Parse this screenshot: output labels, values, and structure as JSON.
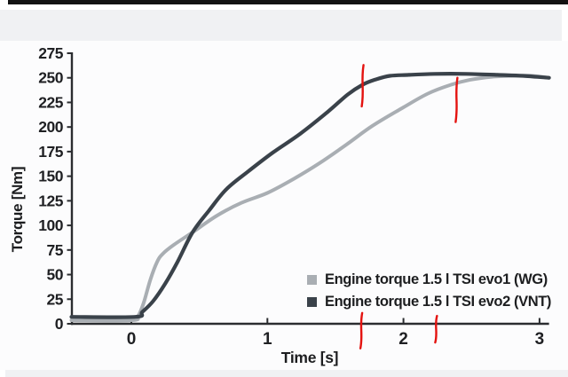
{
  "frame": {
    "top_bar_color": "#121212",
    "band_color": "#f0f1f3",
    "canvas_color": "#fcfcfd"
  },
  "chart_data": {
    "type": "line",
    "title": "",
    "xlabel": "Time [s]",
    "ylabel": "Torque [Nm]",
    "xlim": [
      -0.44,
      3.07
    ],
    "ylim": [
      0,
      275
    ],
    "x_ticks": [
      0,
      1,
      2,
      3
    ],
    "y_ticks": [
      0,
      25,
      50,
      75,
      100,
      125,
      150,
      175,
      200,
      225,
      250,
      275
    ],
    "grid": false,
    "legend_position": "inside lower right",
    "axis_color": "#2b2d30",
    "tick_label_color": "#1f2023",
    "annotation_color": "#e41310",
    "series": [
      {
        "name": "Engine torque 1.5 l TSI evo1 (WG)",
        "color": "#a9aeb3",
        "stroke_width": 4,
        "points": [
          [
            -0.44,
            3.6
          ],
          [
            0.0,
            3.6
          ],
          [
            0.05,
            8
          ],
          [
            0.09,
            21
          ],
          [
            0.14,
            45
          ],
          [
            0.19,
            63
          ],
          [
            0.23,
            71
          ],
          [
            0.31,
            80
          ],
          [
            0.45,
            93
          ],
          [
            0.63,
            110
          ],
          [
            0.81,
            123
          ],
          [
            1.0,
            133
          ],
          [
            1.19,
            147
          ],
          [
            1.38,
            163
          ],
          [
            1.58,
            182
          ],
          [
            1.77,
            201
          ],
          [
            2.0,
            220
          ],
          [
            2.18,
            234
          ],
          [
            2.35,
            243
          ],
          [
            2.49,
            248
          ],
          [
            2.65,
            251
          ],
          [
            2.82,
            252
          ],
          [
            2.95,
            252
          ],
          [
            3.07,
            250
          ]
        ]
      },
      {
        "name": "Engine torque 1.5 l TSI evo2 (VNT)",
        "color": "#3a424a",
        "stroke_width": 4.2,
        "points": [
          [
            -0.44,
            7
          ],
          [
            0.03,
            7
          ],
          [
            0.08,
            12
          ],
          [
            0.16,
            23
          ],
          [
            0.25,
            41
          ],
          [
            0.34,
            63
          ],
          [
            0.45,
            93
          ],
          [
            0.57,
            115
          ],
          [
            0.7,
            137
          ],
          [
            0.86,
            155
          ],
          [
            1.04,
            174
          ],
          [
            1.24,
            193
          ],
          [
            1.44,
            215
          ],
          [
            1.59,
            233
          ],
          [
            1.7,
            243
          ],
          [
            1.79,
            248
          ],
          [
            1.9,
            252
          ],
          [
            2.04,
            253
          ],
          [
            2.23,
            254
          ],
          [
            2.46,
            254
          ],
          [
            2.69,
            253
          ],
          [
            2.88,
            252
          ],
          [
            3.07,
            250
          ]
        ]
      }
    ],
    "annotations": [
      {
        "kind": "red-tick-on-curve",
        "series": "evo2 (VNT)",
        "t": 1.7,
        "nm_from": 263,
        "nm_to": 221
      },
      {
        "kind": "red-tick-on-curve",
        "series": "evo1 (WG)",
        "t": 2.39,
        "nm_from": 250,
        "nm_to": 205
      },
      {
        "kind": "red-tick-on-axis",
        "t": 1.69,
        "nm_from": 11,
        "nm_to": -25
      },
      {
        "kind": "red-tick-on-axis",
        "t": 2.24,
        "nm_from": 8,
        "nm_to": -19
      }
    ]
  }
}
